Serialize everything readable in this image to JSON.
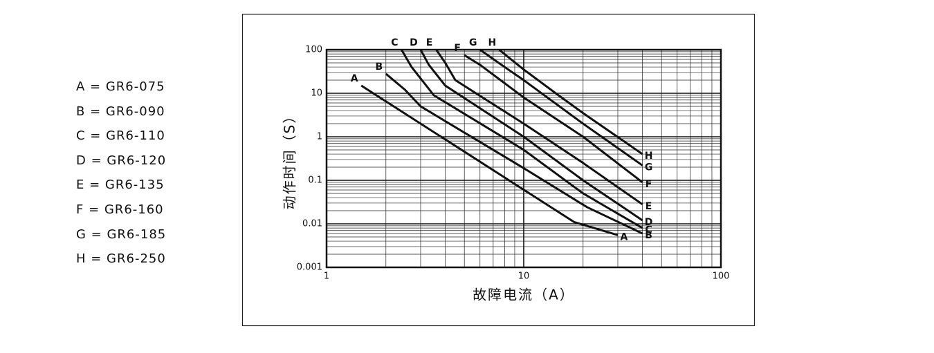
{
  "chart_data": {
    "type": "line",
    "x_label": "故障电流（A）",
    "y_label": "动作时间（S）",
    "legend": [
      "A = GR6-075",
      "B = GR6-090",
      "C = GR6-110",
      "D = GR6-120",
      "E = GR6-135",
      "F = GR6-160",
      "G = GR6-185",
      "H = GR6-250"
    ],
    "xlog": true,
    "ylog": true,
    "grid": true,
    "color": "#111111",
    "xlim": [
      1,
      100
    ],
    "xticks": [
      1,
      10,
      100
    ],
    "ylim": [
      0.001,
      100
    ],
    "yticks": [
      0.001,
      0.01,
      0.1,
      1,
      10,
      100
    ],
    "series": [
      {
        "name": "A",
        "x": [
          1.5,
          18,
          30
        ],
        "values": [
          15,
          0.011,
          0.0055
        ]
      },
      {
        "name": "B",
        "x": [
          2,
          2.5,
          3,
          10,
          21,
          40
        ],
        "values": [
          28,
          12,
          5,
          0.19,
          0.024,
          0.006
        ]
      },
      {
        "name": "C",
        "x": [
          2.4,
          2.7,
          3.5,
          10,
          20,
          40
        ],
        "values": [
          100,
          40,
          9,
          0.5,
          0.05,
          0.008
        ]
      },
      {
        "name": "D",
        "x": [
          3,
          3.3,
          4,
          10,
          20,
          40
        ],
        "values": [
          100,
          45,
          15,
          1.0,
          0.1,
          0.012
        ]
      },
      {
        "name": "E",
        "x": [
          3.6,
          4,
          4.5,
          10,
          20,
          40
        ],
        "values": [
          100,
          50,
          20,
          2.0,
          0.25,
          0.028
        ]
      },
      {
        "name": "F",
        "x": [
          5,
          6,
          10,
          20,
          40
        ],
        "values": [
          75,
          45,
          8,
          1,
          0.09
        ]
      },
      {
        "name": "G",
        "x": [
          6,
          8,
          10,
          20,
          40
        ],
        "values": [
          100,
          40,
          20,
          2,
          0.22
        ]
      },
      {
        "name": "H",
        "x": [
          7.5,
          10,
          15,
          20,
          40
        ],
        "values": [
          100,
          35,
          9,
          3.5,
          0.4
        ]
      }
    ]
  }
}
